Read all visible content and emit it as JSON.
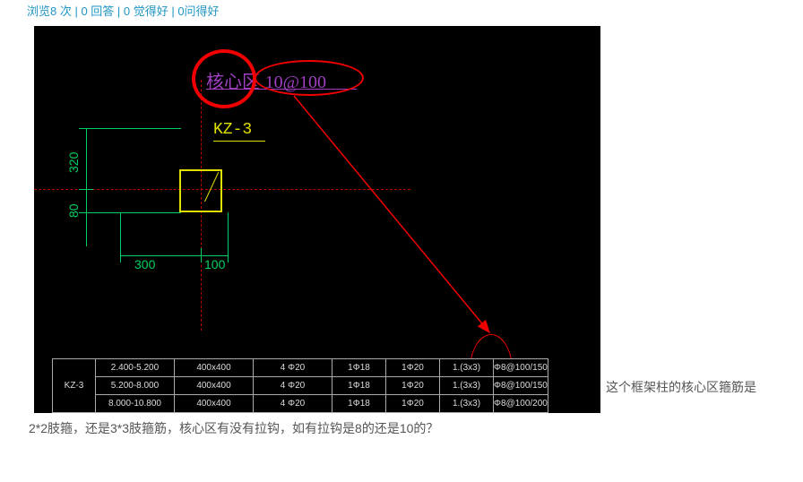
{
  "meta": {
    "text": "浏览8 次 | 0 回答 | 0 觉得好 | 0问得好"
  },
  "side_text": "这个框架柱的核心区箍筋是",
  "question": "2*2肢箍，还是3*3肢箍筋，核心区有没有拉钩，如有拉钩是8的还是10的？",
  "cad": {
    "core_label": "核心区",
    "core_spec": "10@100",
    "kz_label": "KZ-3",
    "dims": {
      "v1": "320",
      "v2": "80",
      "h1": "300",
      "h2": "100"
    },
    "colors": {
      "bg": "#000000",
      "dim": "#00d060",
      "col": "#e0e000",
      "text": "#a040c0",
      "annot": "#f00000",
      "axis": "#c00000"
    }
  },
  "table": {
    "label": "KZ-3",
    "columns_w": [
      48,
      88,
      88,
      88,
      60,
      60,
      60,
      60,
      92
    ],
    "rows": [
      [
        "2.400-5.200",
        "400x400",
        "4 Φ20",
        "1Φ18",
        "1Φ20",
        "1.(3x3)",
        "Φ8@100/150"
      ],
      [
        "5.200-8.000",
        "400x400",
        "4 Φ20",
        "1Φ18",
        "1Φ20",
        "1.(3x3)",
        "Φ8@100/150"
      ],
      [
        "8.000-10.800",
        "400x400",
        "4 Φ20",
        "1Φ18",
        "1Φ20",
        "1.(3x3)",
        "Φ8@100/200"
      ]
    ]
  },
  "buttons": {
    "colors": [
      "#ffe0b0",
      "#c0f0c0",
      "#b0d0ff"
    ]
  }
}
